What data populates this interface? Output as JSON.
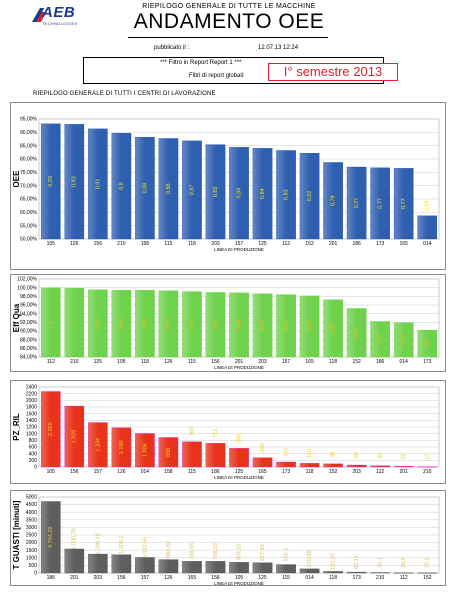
{
  "header": {
    "logo_text": "AEB",
    "logo_sub": "TECHNOLOGIES",
    "subtitle": "RIEPILOGO GENERALE DI TUTTE LE MACCHINE",
    "title": "ANDAMENTO OEE",
    "published_label": "pubblicato il :",
    "published_value": "12.07.13 12:24",
    "filter_line1": "*** Filtro in Report Report 1 ***",
    "filter_line2": "Filtri di report globali:",
    "semester": "I° semestre 2013",
    "section_title": "RIEPILOGO GENERALE DI TUTTI I CENTRI DI LAVORAZIONE"
  },
  "colors": {
    "oee_bar": "#2f5fb0",
    "eff_bar": "#6fd24c",
    "pz_bar": "#e8321a",
    "guasti_bar": "#5e5e5e",
    "label_yellow": "#f0e020"
  },
  "chart_data": [
    {
      "type": "bar",
      "ylabel": "OEE",
      "xlabel": "LINEA DI PRODUZIONE",
      "ylim": [
        50,
        95
      ],
      "ytick_labels": [
        "50,00%",
        "55,00%",
        "60,00%",
        "65,00%",
        "70,00%",
        "75,00%",
        "80,00%",
        "85,00%",
        "90,00%",
        "95,00%"
      ],
      "categories": [
        "105",
        "126",
        "156",
        "210",
        "158",
        "115",
        "118",
        "203",
        "157",
        "125",
        "112",
        "152",
        "201",
        "186",
        "173",
        "165",
        "014"
      ],
      "values": [
        93.2,
        93.0,
        91.3,
        89.7,
        88.2,
        87.7,
        86.8,
        85.4,
        84.4,
        84.0,
        83.2,
        82.2,
        78.7,
        77.0,
        76.7,
        76.5,
        58.7
      ],
      "data_labels": [
        "0,93",
        "0,93",
        "0,91",
        "0,9",
        "0,88",
        "0,88",
        "0,87",
        "0,85",
        "0,84",
        "0,84",
        "0,83",
        "0,82",
        "0,79",
        "0,77",
        "0,77",
        "0,77",
        "0,59"
      ]
    },
    {
      "type": "bar",
      "ylabel": "Eff Qua",
      "xlabel": "LINEA DI PRODUZIONE",
      "ylim": [
        84,
        102
      ],
      "ytick_labels": [
        "84,00%",
        "86,00%",
        "88,00%",
        "90,00%",
        "92,00%",
        "94,00%",
        "96,00%",
        "98,00%",
        "100,00%",
        "102,00%"
      ],
      "categories": [
        "112",
        "210",
        "125",
        "105",
        "118",
        "126",
        "115",
        "156",
        "201",
        "203",
        "157",
        "165",
        "118",
        "152",
        "186",
        "014",
        "173"
      ],
      "values": [
        100.0,
        99.9,
        99.5,
        99.4,
        99.4,
        99.3,
        99.1,
        98.9,
        98.8,
        98.6,
        98.4,
        98.1,
        97.2,
        95.2,
        92.2,
        91.9,
        90.2
      ],
      "data_labels": [
        "1",
        "1",
        "0,99",
        "0,99",
        "0,99",
        "0,99",
        "0,99",
        "0,99",
        "0,99",
        "0,99",
        "0,98",
        "0,98",
        "0,97",
        "0,95",
        "0,92",
        "0,92",
        "0,9"
      ]
    },
    {
      "type": "bar",
      "ylabel": "PZ_RIL",
      "xlabel": "LINEA DI PRODUZIONE",
      "ylim": [
        0,
        2400
      ],
      "ytick_labels": [
        "0",
        "200",
        "400",
        "600",
        "800",
        "1000",
        "1200",
        "1400",
        "1600",
        "1800",
        "2000",
        "2200",
        "2400"
      ],
      "categories": [
        "105",
        "156",
        "157",
        "126",
        "014",
        "158",
        "115",
        "186",
        "125",
        "165",
        "173",
        "118",
        "152",
        "203",
        "112",
        "201",
        "210"
      ],
      "values": [
        2265,
        1829,
        1334,
        1180,
        1006,
        886,
        760,
        712,
        560,
        280,
        150,
        110,
        95,
        60,
        40,
        20,
        10
      ],
      "data_labels": [
        "2.265",
        "1.829",
        "1.334",
        "1.180",
        "1.006",
        "886",
        "760",
        "712",
        "560",
        "280",
        "150",
        "110",
        "95",
        "60",
        "40",
        "20",
        "10"
      ]
    },
    {
      "type": "bar",
      "ylabel": "T GUASTI [minuti]",
      "xlabel": "LINEA DI PRODUZIONE",
      "ylim": [
        0,
        5000
      ],
      "ytick_labels": [
        "0",
        "500",
        "1000",
        "1500",
        "2000",
        "2500",
        "3000",
        "3500",
        "4000",
        "4500",
        "5000"
      ],
      "categories": [
        "186",
        "201",
        "203",
        "156",
        "157",
        "126",
        "165",
        "158",
        "105",
        "125",
        "115",
        "014",
        "118",
        "173",
        "210",
        "112",
        "152"
      ],
      "values": [
        4704.28,
        1580.78,
        1246.18,
        1206.2,
        1022.55,
        883.82,
        768.55,
        768.55,
        700.15,
        677.93,
        556.1,
        270.08,
        102.07,
        60.15,
        30.1,
        18.9,
        10.1
      ],
      "data_labels": [
        "4.704,28",
        "1.580,78",
        "1.246,18",
        "1.206,2",
        "1.022,55",
        "883,82",
        "768,55",
        "768,55",
        "700,15",
        "677,93",
        "556,1",
        "270,08",
        "102,07",
        "60,15",
        "30,1",
        "18,9",
        "10,1"
      ]
    }
  ]
}
